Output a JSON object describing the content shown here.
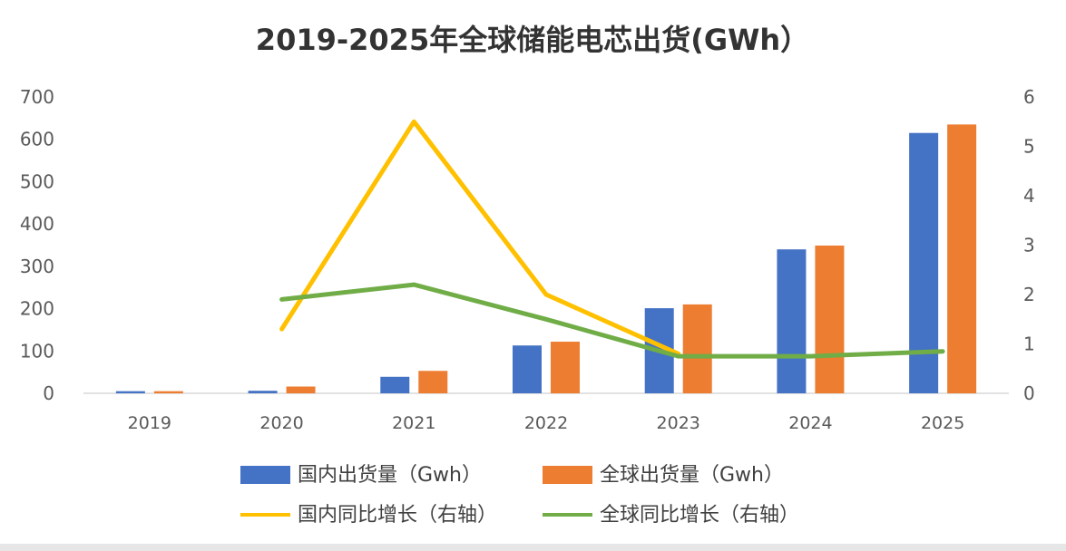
{
  "chart_data": {
    "type": "bar",
    "title": "2019-2025年全球储能电芯出货(GWh）",
    "categories": [
      "2019",
      "2020",
      "2021",
      "2022",
      "2023",
      "2024",
      "2025"
    ],
    "series": [
      {
        "name": "国内出货量（Gwh）",
        "kind": "bar",
        "axis": "left",
        "color": "#4472C4",
        "values": [
          5,
          6,
          39,
          113,
          201,
          340,
          615
        ]
      },
      {
        "name": "全球出货量（Gwh）",
        "kind": "bar",
        "axis": "left",
        "color": "#ED7D31",
        "values": [
          5,
          16,
          53,
          122,
          210,
          349,
          635
        ]
      },
      {
        "name": "国内同比增长（右轴）",
        "kind": "line",
        "axis": "right",
        "color": "#FFC000",
        "values": [
          null,
          1.3,
          5.5,
          2.0,
          0.8,
          null,
          null
        ]
      },
      {
        "name": "全球同比增长（右轴）",
        "kind": "line",
        "axis": "right",
        "color": "#70AD47",
        "values": [
          null,
          1.9,
          2.2,
          1.5,
          0.75,
          0.75,
          0.85
        ]
      }
    ],
    "y_left": {
      "lim": [
        0,
        700
      ],
      "ticks": [
        "0",
        "100",
        "200",
        "300",
        "400",
        "500",
        "600",
        "700"
      ]
    },
    "y_right": {
      "lim": [
        0,
        6
      ],
      "ticks": [
        "0",
        "1",
        "2",
        "3",
        "4",
        "5",
        "6"
      ]
    },
    "grid": false,
    "legend_position": "bottom"
  }
}
